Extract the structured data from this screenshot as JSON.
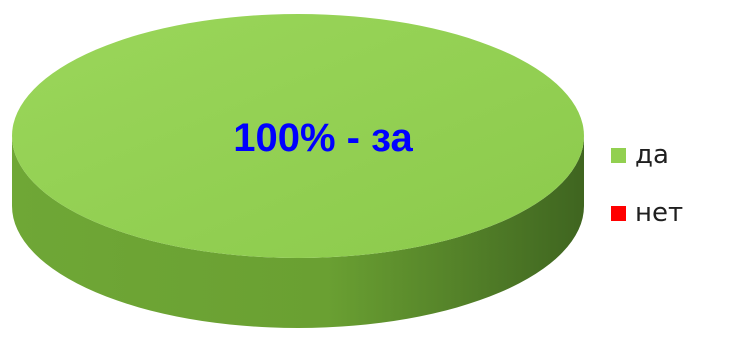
{
  "chart_data": {
    "type": "pie",
    "style": "3d",
    "slices": [
      {
        "label": "да",
        "value": 100,
        "color": "#92d050"
      },
      {
        "label": "нет",
        "value": 0,
        "color": "#ff0000"
      }
    ],
    "data_label": {
      "text": "100% - за",
      "color": "#0000ff"
    },
    "legend": {
      "position": "right",
      "items": [
        {
          "label": "да",
          "color": "#92d050"
        },
        {
          "label": "нет",
          "color": "#ff0000"
        }
      ]
    }
  }
}
